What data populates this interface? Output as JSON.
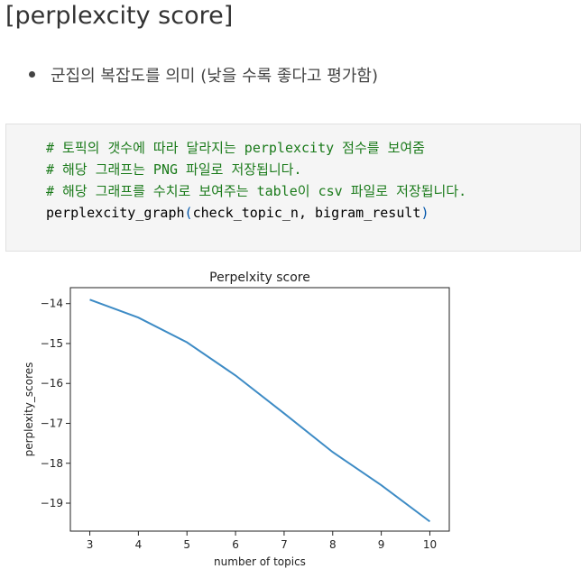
{
  "page": {
    "title": "[perplexcity score]",
    "bullets": [
      "군집의 복잡도를 의미 (낮을 수록 좋다고 평가함)"
    ]
  },
  "code": {
    "comments": [
      "# 토픽의 갯수에 따라 달라지는 perplexcity 점수를 보여줌",
      "# 해당 그래프는 PNG 파일로 저장됩니다.",
      "# 해당 그래프를 수치로 보여주는 table이 csv 파일로 저장됩니다."
    ],
    "func_name": "perplexcity_graph",
    "open_paren": "(",
    "args": "check_topic_n, bigram_result",
    "close_paren": ")"
  },
  "chart_data": {
    "type": "line",
    "title": "Perpelxity score",
    "xlabel": "number of topics",
    "ylabel": "perplexity_scores",
    "x": [
      3,
      4,
      5,
      6,
      7,
      8,
      9,
      10
    ],
    "series": [
      {
        "values": [
          -13.9,
          -14.35,
          -14.97,
          -15.8,
          -16.75,
          -17.72,
          -18.55,
          -19.46
        ]
      }
    ],
    "xlim": [
      2.6,
      10.4
    ],
    "ylim": [
      -19.7,
      -13.6
    ],
    "xticks": [
      3,
      4,
      5,
      6,
      7,
      8,
      9,
      10
    ],
    "yticks": [
      -14,
      -15,
      -16,
      -17,
      -18,
      -19
    ],
    "line_color": "#3d8bc5",
    "grid": false
  }
}
